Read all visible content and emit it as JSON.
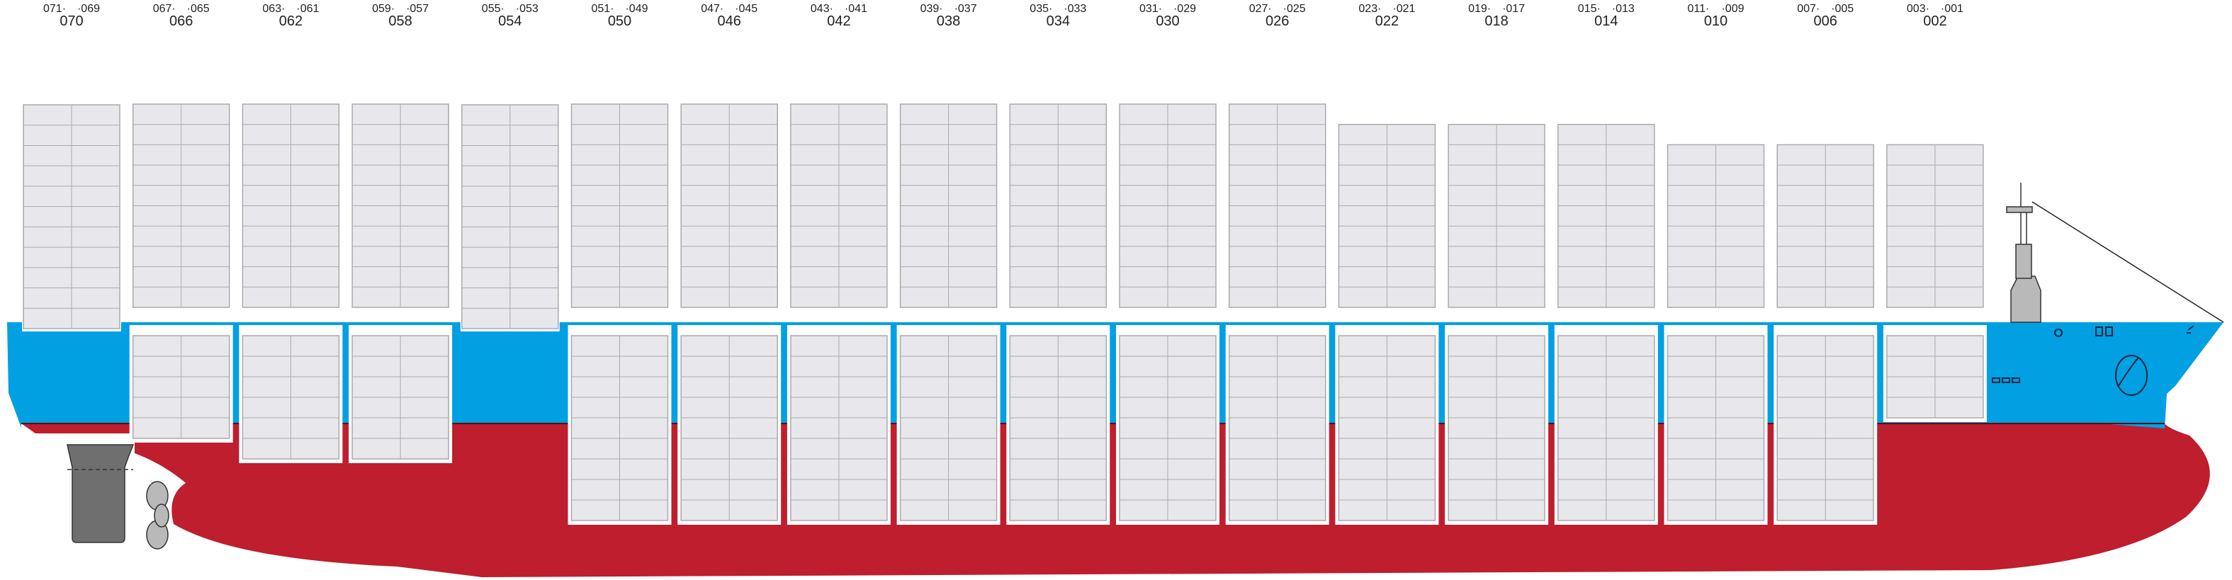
{
  "diagram": {
    "hull_colors": {
      "topsides": "#00a0e3",
      "bottom": "#be1e2d",
      "container": "#e8e7ec",
      "container_edge": "#aaaaaa",
      "dark_grey": "#6f6f6f"
    },
    "bays": [
      {
        "main": "070",
        "left": "071·",
        "right": "·069",
        "deck_tiers": 11,
        "hold_tiers": 0
      },
      {
        "main": "066",
        "left": "067·",
        "right": "·065",
        "deck_tiers": 10,
        "hold_tiers": 5
      },
      {
        "main": "062",
        "left": "063·",
        "right": "·061",
        "deck_tiers": 10,
        "hold_tiers": 6
      },
      {
        "main": "058",
        "left": "059·",
        "right": "·057",
        "deck_tiers": 10,
        "hold_tiers": 6
      },
      {
        "main": "054",
        "left": "055·",
        "right": "·053",
        "deck_tiers": 11,
        "hold_tiers": 0
      },
      {
        "main": "050",
        "left": "051·",
        "right": "·049",
        "deck_tiers": 10,
        "hold_tiers": 9
      },
      {
        "main": "046",
        "left": "047·",
        "right": "·045",
        "deck_tiers": 10,
        "hold_tiers": 9
      },
      {
        "main": "042",
        "left": "043·",
        "right": "·041",
        "deck_tiers": 10,
        "hold_tiers": 9
      },
      {
        "main": "038",
        "left": "039·",
        "right": "·037",
        "deck_tiers": 10,
        "hold_tiers": 9
      },
      {
        "main": "034",
        "left": "035·",
        "right": "·033",
        "deck_tiers": 10,
        "hold_tiers": 9
      },
      {
        "main": "030",
        "left": "031·",
        "right": "·029",
        "deck_tiers": 10,
        "hold_tiers": 9
      },
      {
        "main": "026",
        "left": "027·",
        "right": "·025",
        "deck_tiers": 10,
        "hold_tiers": 9
      },
      {
        "main": "022",
        "left": "023·",
        "right": "·021",
        "deck_tiers": 9,
        "hold_tiers": 9
      },
      {
        "main": "018",
        "left": "019·",
        "right": "·017",
        "deck_tiers": 9,
        "hold_tiers": 9
      },
      {
        "main": "014",
        "left": "015·",
        "right": "·013",
        "deck_tiers": 9,
        "hold_tiers": 9
      },
      {
        "main": "010",
        "left": "011·",
        "right": "·009",
        "deck_tiers": 8,
        "hold_tiers": 9
      },
      {
        "main": "006",
        "left": "007·",
        "right": "·005",
        "deck_tiers": 8,
        "hold_tiers": 9
      },
      {
        "main": "002",
        "left": "003·",
        "right": "·001",
        "deck_tiers": 8,
        "hold_tiers": 4
      }
    ]
  }
}
